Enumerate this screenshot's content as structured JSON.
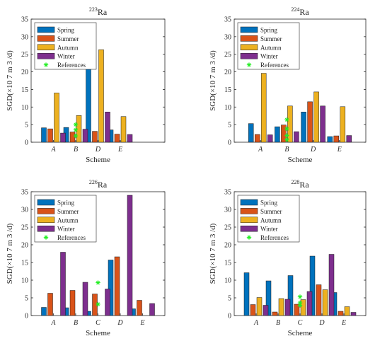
{
  "colors": {
    "Spring": "#0072BD",
    "Summer": "#D95319",
    "Autumn": "#EDB120",
    "Winter": "#7E2F8E",
    "References": "#22ee22",
    "axis": "#262626",
    "bar_edge": "#1a1a1a"
  },
  "legend_labels": [
    "Spring",
    "Summer",
    "Autumn",
    "Winter",
    "References"
  ],
  "chart_data": [
    {
      "type": "bar",
      "title_sup": "223",
      "title_main": "Ra",
      "xlabel": "Scheme",
      "ylabel": "SGD(×10 7  m 3 /d)",
      "ylim": [
        0,
        35
      ],
      "yticks": [
        0,
        5,
        10,
        15,
        20,
        25,
        30,
        35
      ],
      "x_positions": [
        1,
        2,
        3,
        4,
        5
      ],
      "xlim": [
        0,
        6
      ],
      "categories": [
        "A",
        "B",
        "D",
        "E"
      ],
      "category_positions": [
        1,
        2,
        3,
        4
      ],
      "legend": "top-left",
      "series": [
        {
          "name": "Spring",
          "values": [
            4.1,
            4.2,
            21.3,
            3.5
          ]
        },
        {
          "name": "Summer",
          "values": [
            3.8,
            2.9,
            3.1,
            2.3
          ]
        },
        {
          "name": "Autumn",
          "values": [
            14.0,
            7.6,
            26.3,
            7.3
          ]
        },
        {
          "name": "Winter",
          "values": [
            2.6,
            3.7,
            8.6,
            2.2
          ]
        }
      ],
      "references": [
        {
          "x": 2,
          "y": 5.0
        },
        {
          "x": 2,
          "y": 3.5
        },
        {
          "x": 2,
          "y": 1.8
        }
      ]
    },
    {
      "type": "bar",
      "title_sup": "224",
      "title_main": "Ra",
      "xlabel": "Scheme",
      "ylabel": "SGD(×10 7  m 3 /d)",
      "ylim": [
        0,
        35
      ],
      "yticks": [
        0,
        5,
        10,
        15,
        20,
        25,
        30,
        35
      ],
      "xlim": [
        0,
        5
      ],
      "categories": [
        "A",
        "B",
        "D",
        "E"
      ],
      "category_positions": [
        1,
        2,
        3,
        4
      ],
      "legend": "top-left",
      "series": [
        {
          "name": "Spring",
          "values": [
            5.3,
            4.4,
            8.6,
            1.6
          ]
        },
        {
          "name": "Summer",
          "values": [
            2.2,
            4.9,
            11.5,
            1.8
          ]
        },
        {
          "name": "Autumn",
          "values": [
            19.6,
            10.3,
            14.3,
            10.1
          ]
        },
        {
          "name": "Winter",
          "values": [
            2.1,
            3.0,
            10.3,
            1.9
          ]
        }
      ],
      "references": [
        {
          "x": 2,
          "y": 6.4
        },
        {
          "x": 2,
          "y": 3.8
        },
        {
          "x": 2,
          "y": 1.9
        },
        {
          "x": 2,
          "y": 0.7
        }
      ]
    },
    {
      "type": "bar",
      "title_sup": "226",
      "title_main": "Ra",
      "xlabel": "Scheme",
      "ylabel": "SGD(×10 7  m 3 /d)",
      "ylim": [
        0,
        35
      ],
      "yticks": [
        0,
        5,
        10,
        15,
        20,
        25,
        30,
        35
      ],
      "xlim": [
        0,
        6
      ],
      "categories": [
        "A",
        "B",
        "C",
        "D",
        "E"
      ],
      "category_positions": [
        1,
        2,
        3,
        4,
        5
      ],
      "legend": "top-left",
      "series": [
        {
          "name": "Spring",
          "values": [
            2.3,
            2.2,
            1.2,
            15.7,
            1.9
          ]
        },
        {
          "name": "Summer",
          "values": [
            6.3,
            7.1,
            6.1,
            16.6,
            4.3
          ]
        },
        {
          "name": "Autumn",
          "values": [
            0,
            0,
            0,
            0,
            0
          ]
        },
        {
          "name": "Winter",
          "values": [
            17.9,
            9.4,
            7.5,
            34.0,
            3.4
          ]
        }
      ],
      "references": [
        {
          "x": 3,
          "y": 9.3
        },
        {
          "x": 3,
          "y": 3.2
        }
      ]
    },
    {
      "type": "bar",
      "title_sup": "228",
      "title_main": "Ra",
      "xlabel": "Scheme",
      "ylabel": "SGD(×10 7  m 3 /d)",
      "ylim": [
        0,
        35
      ],
      "yticks": [
        0,
        5,
        10,
        15,
        20,
        25,
        30,
        35
      ],
      "xlim": [
        0,
        6
      ],
      "categories": [
        "A",
        "B",
        "C",
        "D",
        "E"
      ],
      "category_positions": [
        1,
        2,
        3,
        4,
        5
      ],
      "legend": "top-left",
      "series": [
        {
          "name": "Spring",
          "values": [
            12.1,
            9.8,
            11.3,
            16.8,
            6.5
          ]
        },
        {
          "name": "Summer",
          "values": [
            3.1,
            1.0,
            3.2,
            8.7,
            1.2
          ]
        },
        {
          "name": "Autumn",
          "values": [
            5.1,
            4.8,
            4.5,
            7.3,
            2.5
          ]
        },
        {
          "name": "Winter",
          "values": [
            2.9,
            4.6,
            6.8,
            17.3,
            0.9
          ]
        }
      ],
      "references": [
        {
          "x": 3,
          "y": 5.3
        },
        {
          "x": 3,
          "y": 3.6
        },
        {
          "x": 3,
          "y": 2.9
        }
      ]
    }
  ]
}
